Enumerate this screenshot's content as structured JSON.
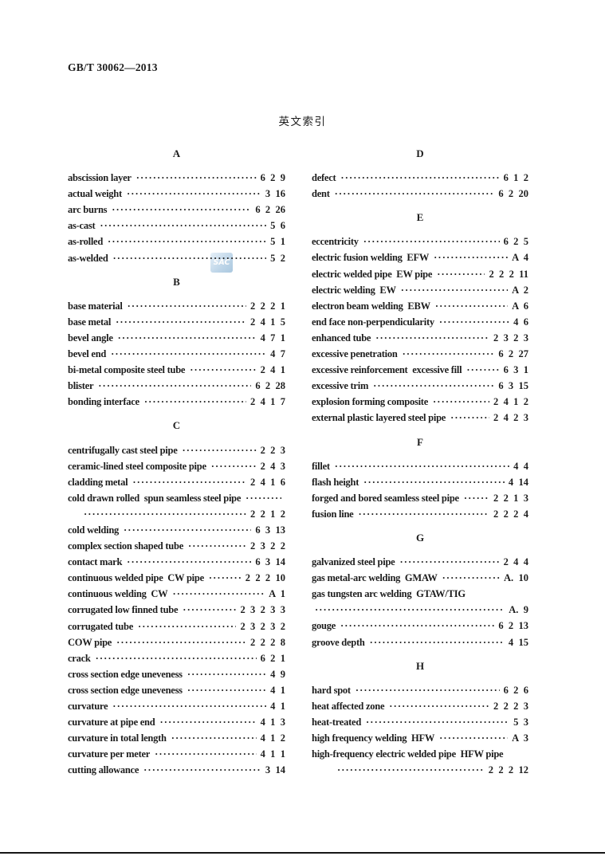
{
  "header": {
    "code": "GB/T 30062—2013",
    "title": "英文索引"
  },
  "watermark": {
    "text": "SAC"
  },
  "columns": {
    "left": [
      {
        "type": "section",
        "label": "A"
      },
      {
        "type": "entry",
        "label": "abscission layer",
        "num": "6 2 9"
      },
      {
        "type": "entry",
        "label": "actual weight",
        "num": "3 16"
      },
      {
        "type": "entry",
        "label": "arc burns",
        "num": "6 2 26"
      },
      {
        "type": "entry",
        "label": "as-cast",
        "num": "5 6"
      },
      {
        "type": "entry",
        "label": "as-rolled",
        "num": "5 1"
      },
      {
        "type": "entry",
        "label": "as-welded",
        "num": "5 2"
      },
      {
        "type": "section",
        "label": "B"
      },
      {
        "type": "entry",
        "label": "base material",
        "num": "2 2 2 1"
      },
      {
        "type": "entry",
        "label": "base metal",
        "num": "2 4 1 5"
      },
      {
        "type": "entry",
        "label": "bevel angle",
        "num": "4 7 1"
      },
      {
        "type": "entry",
        "label": "bevel end",
        "num": "4 7"
      },
      {
        "type": "entry",
        "label": "bi-metal composite steel tube",
        "num": "2 4 1"
      },
      {
        "type": "entry",
        "label": "blister",
        "num": "6 2 28"
      },
      {
        "type": "entry",
        "label": "bonding interface",
        "num": "2 4 1 7"
      },
      {
        "type": "section",
        "label": "C"
      },
      {
        "type": "entry",
        "label": "centrifugally cast steel pipe",
        "num": "2 2 3"
      },
      {
        "type": "entry",
        "label": "ceramic-lined steel composite pipe",
        "num": "2 4 3"
      },
      {
        "type": "entry",
        "label": "cladding metal",
        "num": "2 4 1 6"
      },
      {
        "type": "entry",
        "label": "cold drawn rolled  spun seamless steel pipe",
        "num": "2 2 1 2",
        "wrap": true,
        "leader1": true,
        "indent2": 20
      },
      {
        "type": "entry",
        "label": "cold welding",
        "num": "6 3 13"
      },
      {
        "type": "entry",
        "label": "complex section shaped tube",
        "num": "2 3 2 2"
      },
      {
        "type": "entry",
        "label": "contact mark",
        "num": "6 3 14"
      },
      {
        "type": "entry",
        "label": "continuous welded pipe  CW pipe",
        "num": "2 2 2 10"
      },
      {
        "type": "entry",
        "label": "continuous welding  CW",
        "num": "A 1"
      },
      {
        "type": "entry",
        "label": "corrugated low finned tube",
        "num": "2 3 2 3 3"
      },
      {
        "type": "entry",
        "label": "corrugated tube",
        "num": "2 3 2 3 2"
      },
      {
        "type": "entry",
        "label": "COW pipe",
        "num": "2 2 2 8"
      },
      {
        "type": "entry",
        "label": "crack",
        "num": "6 2 1"
      },
      {
        "type": "entry",
        "label": "cross section edge uneveness",
        "num": "4 9"
      },
      {
        "type": "entry",
        "label": "cross section edge uneveness",
        "num": "4 1"
      },
      {
        "type": "entry",
        "label": "curvature",
        "num": "4 1"
      },
      {
        "type": "entry",
        "label": "curvature at pipe end",
        "num": "4 1 3"
      },
      {
        "type": "entry",
        "label": "curvature in total length",
        "num": "4 1 2"
      },
      {
        "type": "entry",
        "label": "curvature per meter",
        "num": "4 1 1"
      },
      {
        "type": "entry",
        "label": "cutting allowance",
        "num": "3 14"
      }
    ],
    "right": [
      {
        "type": "section",
        "label": "D"
      },
      {
        "type": "entry",
        "label": "defect",
        "num": "6 1 2"
      },
      {
        "type": "entry",
        "label": "dent",
        "num": "6 2 20"
      },
      {
        "type": "section",
        "label": "E"
      },
      {
        "type": "entry",
        "label": "eccentricity",
        "num": "6 2 5"
      },
      {
        "type": "entry",
        "label": "electric fusion welding  EFW",
        "num": "A 4"
      },
      {
        "type": "entry",
        "label": "electric welded pipe  EW pipe",
        "num": "2 2 2 11"
      },
      {
        "type": "entry",
        "label": "electric welding  EW",
        "num": "A 2"
      },
      {
        "type": "entry",
        "label": "electron beam welding  EBW",
        "num": "A 6"
      },
      {
        "type": "entry",
        "label": "end face non-perpendicularity",
        "num": "4 6"
      },
      {
        "type": "entry",
        "label": "enhanced tube",
        "num": "2 3 2 3"
      },
      {
        "type": "entry",
        "label": "excessive penetration",
        "num": "6 2 27"
      },
      {
        "type": "entry",
        "label": "excessive reinforcement  excessive fill",
        "num": "6 3 1"
      },
      {
        "type": "entry",
        "label": "excessive trim",
        "num": "6 3 15"
      },
      {
        "type": "entry",
        "label": "explosion forming composite",
        "num": "2 4 1 2"
      },
      {
        "type": "entry",
        "label": "external plastic layered steel pipe",
        "num": "2 4 2 3"
      },
      {
        "type": "section",
        "label": "F"
      },
      {
        "type": "entry",
        "label": "fillet",
        "num": "4 4"
      },
      {
        "type": "entry",
        "label": "flash height",
        "num": "4 14"
      },
      {
        "type": "entry",
        "label": "forged and bored seamless steel pipe",
        "num": "2 2 1 3"
      },
      {
        "type": "entry",
        "label": "fusion line",
        "num": "2 2 2 4"
      },
      {
        "type": "section",
        "label": "G"
      },
      {
        "type": "entry",
        "label": "galvanized steel pipe",
        "num": "2 4 4"
      },
      {
        "type": "entry",
        "label": "gas metal-arc welding  GMAW",
        "num": "A. 10"
      },
      {
        "type": "entry",
        "label": "gas tungsten arc welding  GTAW/TIG",
        "num": "A. 9",
        "wrap": true,
        "leader1": false,
        "indent2": 4
      },
      {
        "type": "entry",
        "label": "gouge",
        "num": "6 2 13"
      },
      {
        "type": "entry",
        "label": "groove depth",
        "num": "4 15"
      },
      {
        "type": "section",
        "label": "H"
      },
      {
        "type": "entry",
        "label": "hard spot",
        "num": "6 2 6"
      },
      {
        "type": "entry",
        "label": "heat affected zone",
        "num": "2 2 2 3"
      },
      {
        "type": "entry",
        "label": "heat-treated",
        "num": "5 3"
      },
      {
        "type": "entry",
        "label": "high frequency welding  HFW",
        "num": "A 3"
      },
      {
        "type": "entry",
        "label": "high-frequency electric welded pipe  HFW pipe",
        "num": "2 2 2 12",
        "wrap": true,
        "leader1": false,
        "indent2": 32
      }
    ]
  }
}
